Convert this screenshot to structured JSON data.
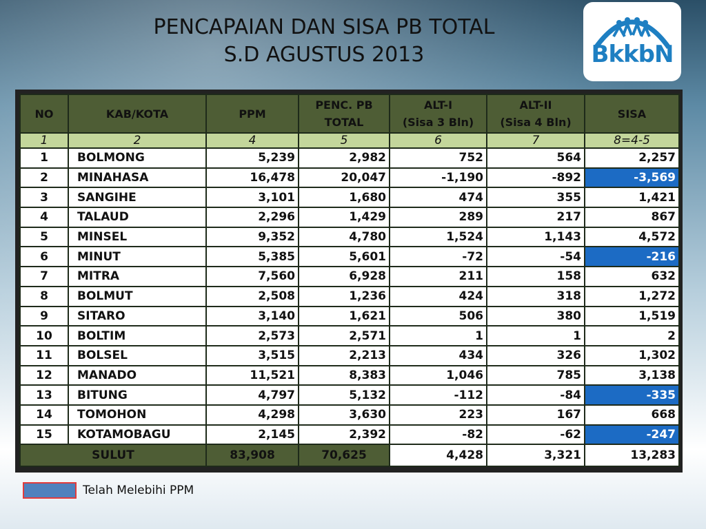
{
  "title": {
    "line1": "PENCAPAIAN DAN SISA PB TOTAL",
    "line2": "S.D AGUSTUS 2013"
  },
  "logo": {
    "text": "BkkbN",
    "icon": "family-people-arc-icon",
    "color": "#1e7fc2"
  },
  "table": {
    "headers": [
      {
        "line1": "NO",
        "line2": ""
      },
      {
        "line1": "KAB/KOTA",
        "line2": ""
      },
      {
        "line1": "PPM",
        "line2": ""
      },
      {
        "line1": "PENC. PB",
        "line2": "TOTAL"
      },
      {
        "line1": "ALT-I",
        "line2": "(Sisa 3 Bln)"
      },
      {
        "line1": "ALT-II",
        "line2": "(Sisa 4 Bln)"
      },
      {
        "line1": "SISA",
        "line2": ""
      }
    ],
    "index_row": [
      "1",
      "2",
      "4",
      "5",
      "6",
      "7",
      "8=4-5"
    ],
    "rows": [
      {
        "no": "1",
        "kab": "BOLMONG",
        "ppm": "5,239",
        "penc": "2,982",
        "alt1": "752",
        "alt2": "564",
        "sisa": "2,257"
      },
      {
        "no": "2",
        "kab": "MINAHASA",
        "ppm": "16,478",
        "penc": "20,047",
        "alt1": "-1,190",
        "alt2": "-892",
        "sisa": "-3,569"
      },
      {
        "no": "3",
        "kab": "SANGIHE",
        "ppm": "3,101",
        "penc": "1,680",
        "alt1": "474",
        "alt2": "355",
        "sisa": "1,421"
      },
      {
        "no": "4",
        "kab": "TALAUD",
        "ppm": "2,296",
        "penc": "1,429",
        "alt1": "289",
        "alt2": "217",
        "sisa": "867"
      },
      {
        "no": "5",
        "kab": "MINSEL",
        "ppm": "9,352",
        "penc": "4,780",
        "alt1": "1,524",
        "alt2": "1,143",
        "sisa": "4,572"
      },
      {
        "no": "6",
        "kab": "MINUT",
        "ppm": "5,385",
        "penc": "5,601",
        "alt1": "-72",
        "alt2": "-54",
        "sisa": "-216"
      },
      {
        "no": "7",
        "kab": "MITRA",
        "ppm": "7,560",
        "penc": "6,928",
        "alt1": "211",
        "alt2": "158",
        "sisa": "632"
      },
      {
        "no": "8",
        "kab": "BOLMUT",
        "ppm": "2,508",
        "penc": "1,236",
        "alt1": "424",
        "alt2": "318",
        "sisa": "1,272"
      },
      {
        "no": "9",
        "kab": "SITARO",
        "ppm": "3,140",
        "penc": "1,621",
        "alt1": "506",
        "alt2": "380",
        "sisa": "1,519"
      },
      {
        "no": "10",
        "kab": "BOLTIM",
        "ppm": "2,573",
        "penc": "2,571",
        "alt1": "1",
        "alt2": "1",
        "sisa": "2"
      },
      {
        "no": "11",
        "kab": "BOLSEL",
        "ppm": "3,515",
        "penc": "2,213",
        "alt1": "434",
        "alt2": "326",
        "sisa": "1,302"
      },
      {
        "no": "12",
        "kab": "MANADO",
        "ppm": "11,521",
        "penc": "8,383",
        "alt1": "1,046",
        "alt2": "785",
        "sisa": "3,138"
      },
      {
        "no": "13",
        "kab": "BITUNG",
        "ppm": "4,797",
        "penc": "5,132",
        "alt1": "-112",
        "alt2": "-84",
        "sisa": "-335"
      },
      {
        "no": "14",
        "kab": "TOMOHON",
        "ppm": "4,298",
        "penc": "3,630",
        "alt1": "223",
        "alt2": "167",
        "sisa": "668"
      },
      {
        "no": "15",
        "kab": "KOTAMOBAGU",
        "ppm": "2,145",
        "penc": "2,392",
        "alt1": "-82",
        "alt2": "-62",
        "sisa": "-247"
      }
    ],
    "total": {
      "label": "SULUT",
      "ppm": "83,908",
      "penc": "70,625",
      "alt1": "4,428",
      "alt2": "3,321",
      "sisa": "13,283"
    },
    "highlight_color": "#1c6bc4",
    "header_color": "#4e5d35",
    "index_row_color": "#c3d69b"
  },
  "legend": {
    "text": "Telah Melebihi PPM",
    "swatch_color": "#4f81bd",
    "swatch_border": "#e23b3b"
  }
}
